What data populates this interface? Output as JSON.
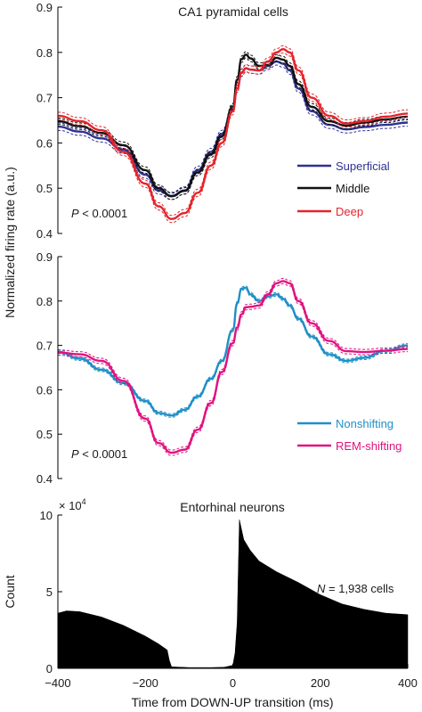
{
  "figure": {
    "ylabel_shared": "Normalized firing rate (a.u.)",
    "xlabel": "Time from DOWN-UP transition (ms)"
  },
  "chart_data": [
    {
      "type": "line",
      "title": "CA1 pyramidal cells",
      "ylabel": "Normalized firing rate (a.u.)",
      "xlim": [
        -400,
        400
      ],
      "ylim": [
        0.4,
        0.9
      ],
      "yticks": [
        "0.4",
        "0.5",
        "0.6",
        "0.7",
        "0.8",
        "0.9"
      ],
      "annotation": {
        "italic": "P",
        "rest": " < 0.0001"
      },
      "legend_position": "right",
      "band_style": "dashed",
      "x": [
        -400,
        -350,
        -300,
        -250,
        -200,
        -170,
        -140,
        -110,
        -80,
        -50,
        -25,
        0,
        10,
        20,
        30,
        40,
        60,
        80,
        100,
        115,
        130,
        150,
        180,
        220,
        260,
        300,
        350,
        400
      ],
      "series": [
        {
          "name": "Superficial",
          "color": "#2e3192",
          "band": 0.008,
          "values": [
            0.636,
            0.625,
            0.61,
            0.585,
            0.53,
            0.495,
            0.483,
            0.495,
            0.54,
            0.58,
            0.62,
            0.675,
            0.72,
            0.755,
            0.765,
            0.762,
            0.76,
            0.77,
            0.78,
            0.775,
            0.76,
            0.72,
            0.67,
            0.64,
            0.63,
            0.635,
            0.64,
            0.645
          ]
        },
        {
          "name": "Middle",
          "color": "#111111",
          "band": 0.007,
          "values": [
            0.648,
            0.637,
            0.622,
            0.595,
            0.54,
            0.5,
            0.482,
            0.494,
            0.535,
            0.575,
            0.615,
            0.68,
            0.74,
            0.785,
            0.795,
            0.787,
            0.77,
            0.772,
            0.788,
            0.784,
            0.77,
            0.73,
            0.68,
            0.648,
            0.638,
            0.645,
            0.652,
            0.658
          ]
        },
        {
          "name": "Deep",
          "color": "#e4242b",
          "band": 0.008,
          "values": [
            0.66,
            0.648,
            0.628,
            0.58,
            0.51,
            0.46,
            0.432,
            0.445,
            0.49,
            0.55,
            0.6,
            0.67,
            0.72,
            0.756,
            0.765,
            0.762,
            0.76,
            0.78,
            0.8,
            0.807,
            0.8,
            0.76,
            0.7,
            0.66,
            0.643,
            0.648,
            0.658,
            0.665
          ]
        }
      ]
    },
    {
      "type": "line",
      "title": "",
      "xlim": [
        -400,
        400
      ],
      "ylim": [
        0.4,
        0.9
      ],
      "yticks": [
        "0.4",
        "0.5",
        "0.6",
        "0.7",
        "0.8",
        "0.9"
      ],
      "annotation": {
        "italic": "P",
        "rest": " < 0.0001"
      },
      "legend_position": "right",
      "band_style": "dashed",
      "x": [
        -400,
        -350,
        -300,
        -250,
        -200,
        -170,
        -140,
        -110,
        -80,
        -50,
        -25,
        0,
        10,
        20,
        30,
        40,
        60,
        80,
        100,
        115,
        130,
        150,
        180,
        220,
        260,
        300,
        350,
        400
      ],
      "series": [
        {
          "name": "Nonshifting",
          "color": "#1f8fc7",
          "band": 0.004,
          "values": [
            0.686,
            0.67,
            0.645,
            0.615,
            0.575,
            0.548,
            0.542,
            0.555,
            0.585,
            0.625,
            0.665,
            0.735,
            0.795,
            0.828,
            0.83,
            0.815,
            0.8,
            0.81,
            0.815,
            0.805,
            0.79,
            0.76,
            0.72,
            0.68,
            0.665,
            0.672,
            0.688,
            0.7
          ]
        },
        {
          "name": "REM-shifting",
          "color": "#e0127f",
          "band": 0.006,
          "values": [
            0.684,
            0.68,
            0.665,
            0.62,
            0.535,
            0.48,
            0.458,
            0.465,
            0.51,
            0.57,
            0.64,
            0.705,
            0.74,
            0.77,
            0.786,
            0.787,
            0.79,
            0.815,
            0.84,
            0.845,
            0.84,
            0.8,
            0.75,
            0.71,
            0.687,
            0.685,
            0.688,
            0.692
          ]
        }
      ]
    },
    {
      "type": "area",
      "title": "Entorhinal neurons",
      "ylabel": "Count",
      "xlim": [
        -400,
        400
      ],
      "ylim": [
        0,
        100000
      ],
      "yticks": [
        "0",
        "5",
        "10"
      ],
      "y_multiplier": {
        "base": "× 10",
        "exponent": "4"
      },
      "annotation": {
        "italic": "N",
        "rest": " = 1,938 cells"
      },
      "fill_color": "#000000",
      "x": [
        -400,
        -380,
        -350,
        -300,
        -250,
        -200,
        -170,
        -150,
        -145,
        -140,
        -100,
        -50,
        -20,
        0,
        5,
        10,
        15,
        25,
        40,
        60,
        100,
        150,
        200,
        250,
        300,
        350,
        400
      ],
      "values": [
        36000,
        37500,
        37000,
        33500,
        28000,
        21000,
        16000,
        12000,
        5000,
        1000,
        500,
        500,
        700,
        2000,
        10000,
        30000,
        97000,
        84000,
        77000,
        70000,
        63000,
        56000,
        48000,
        42000,
        38500,
        36000,
        35000
      ]
    }
  ],
  "x_axis": {
    "ticks": [
      "−400",
      "−200",
      "0",
      "200",
      "400"
    ],
    "tick_values": [
      -400,
      -200,
      0,
      200,
      400
    ]
  }
}
